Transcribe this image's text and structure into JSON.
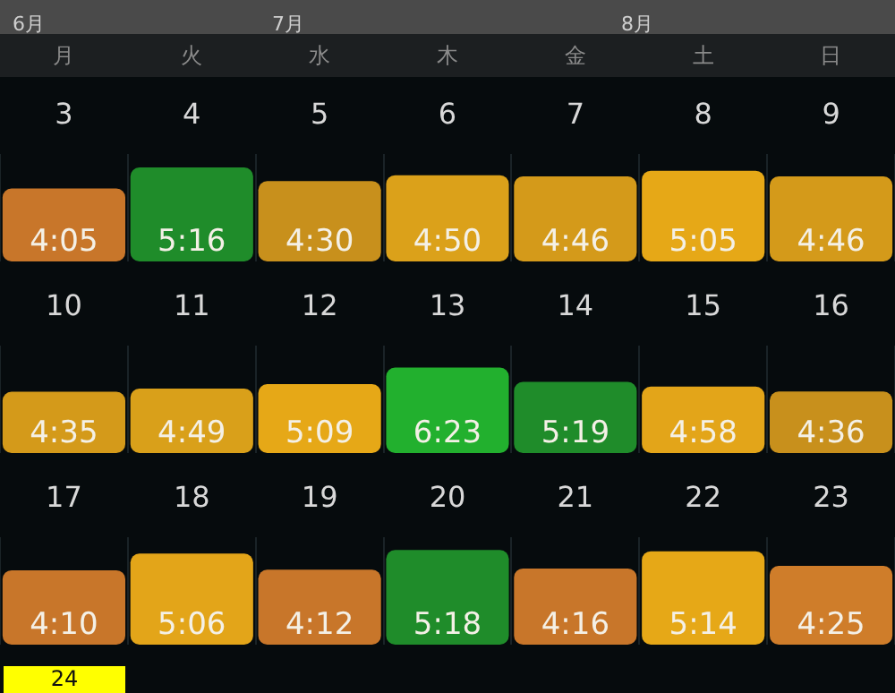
{
  "chart_data": [
    {
      "type": "other",
      "annotations": [
        "6月",
        "7月",
        "8月"
      ]
    },
    {
      "type": "other",
      "categories": [
        "月",
        "火",
        "水",
        "木",
        "金",
        "土",
        "日"
      ]
    },
    {
      "type": "bar",
      "tick_labels": "x",
      "grid": "x",
      "categories": [
        "3",
        "4",
        "5",
        "6",
        "7",
        "8",
        "9"
      ],
      "values": [
        4.083,
        5.267,
        4.5,
        4.833,
        4.767,
        5.083,
        4.767
      ],
      "colors": [
        "#c8762a",
        "#1f8c2a",
        "#c8901c",
        "#dba11a",
        "#d49a1a",
        "#e6a817",
        "#d49a1a"
      ],
      "value_labels": [
        "4:05",
        "5:16",
        "4:30",
        "4:50",
        "4:46",
        "5:05",
        "4:46"
      ]
    },
    {
      "type": "bar",
      "tick_labels": "x",
      "grid": "x",
      "categories": [
        "10",
        "11",
        "12",
        "13",
        "14",
        "15",
        "16"
      ],
      "values": [
        4.583,
        4.817,
        5.15,
        6.383,
        5.317,
        4.967,
        4.6
      ],
      "colors": [
        "#d49a1a",
        "#d9a01a",
        "#e6a817",
        "#22b02e",
        "#1f8c2a",
        "#e3a519",
        "#c8901c"
      ],
      "value_labels": [
        "4:35",
        "4:49",
        "5:09",
        "6:23",
        "5:19",
        "4:58",
        "4:36"
      ]
    },
    {
      "type": "bar",
      "tick_labels": "x",
      "grid": "x",
      "categories": [
        "17",
        "18",
        "19",
        "20",
        "21",
        "22",
        "23"
      ],
      "values": [
        4.167,
        5.1,
        4.2,
        5.3,
        4.267,
        5.233,
        4.417
      ],
      "colors": [
        "#c8762a",
        "#e3a519",
        "#c8762a",
        "#1f8c2a",
        "#c8762a",
        "#e6a817",
        "#cf7d2a"
      ],
      "value_labels": [
        "4:10",
        "5:06",
        "4:12",
        "5:18",
        "4:16",
        "5:14",
        "4:25"
      ]
    },
    {
      "type": "other",
      "annotations": [
        "24"
      ]
    }
  ]
}
